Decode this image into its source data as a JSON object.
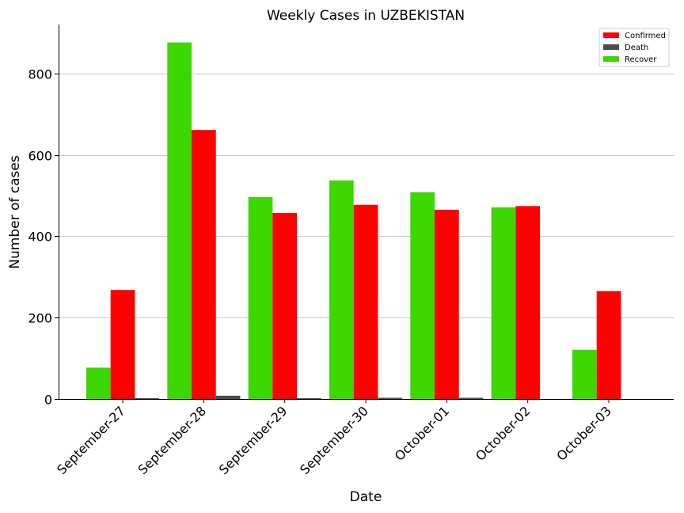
{
  "chart_data": {
    "type": "bar",
    "title": "Weekly Cases in UZBEKISTAN",
    "xlabel": "Date",
    "ylabel": "Number of cases",
    "categories": [
      "September-27",
      "September-28",
      "September-29",
      "September-30",
      "October-01",
      "October-02",
      "October-03"
    ],
    "ylim": [
      0,
      920
    ],
    "yticks": [
      0,
      200,
      400,
      600,
      800
    ],
    "grid": "horizontal",
    "legend_position": "top-right",
    "legend_order": [
      "Confirmed",
      "Death",
      "Recover"
    ],
    "series": [
      {
        "name": "Recover",
        "color": "#3cd700",
        "values": [
          77,
          876,
          496,
          537,
          508,
          471,
          121
        ]
      },
      {
        "name": "Confirmed",
        "color": "#ff0000",
        "values": [
          268,
          661,
          457,
          477,
          465,
          474,
          265
        ]
      },
      {
        "name": "Death",
        "color": "#4d4d4d",
        "values": [
          2,
          8,
          2,
          3,
          3,
          0,
          0
        ]
      }
    ]
  }
}
